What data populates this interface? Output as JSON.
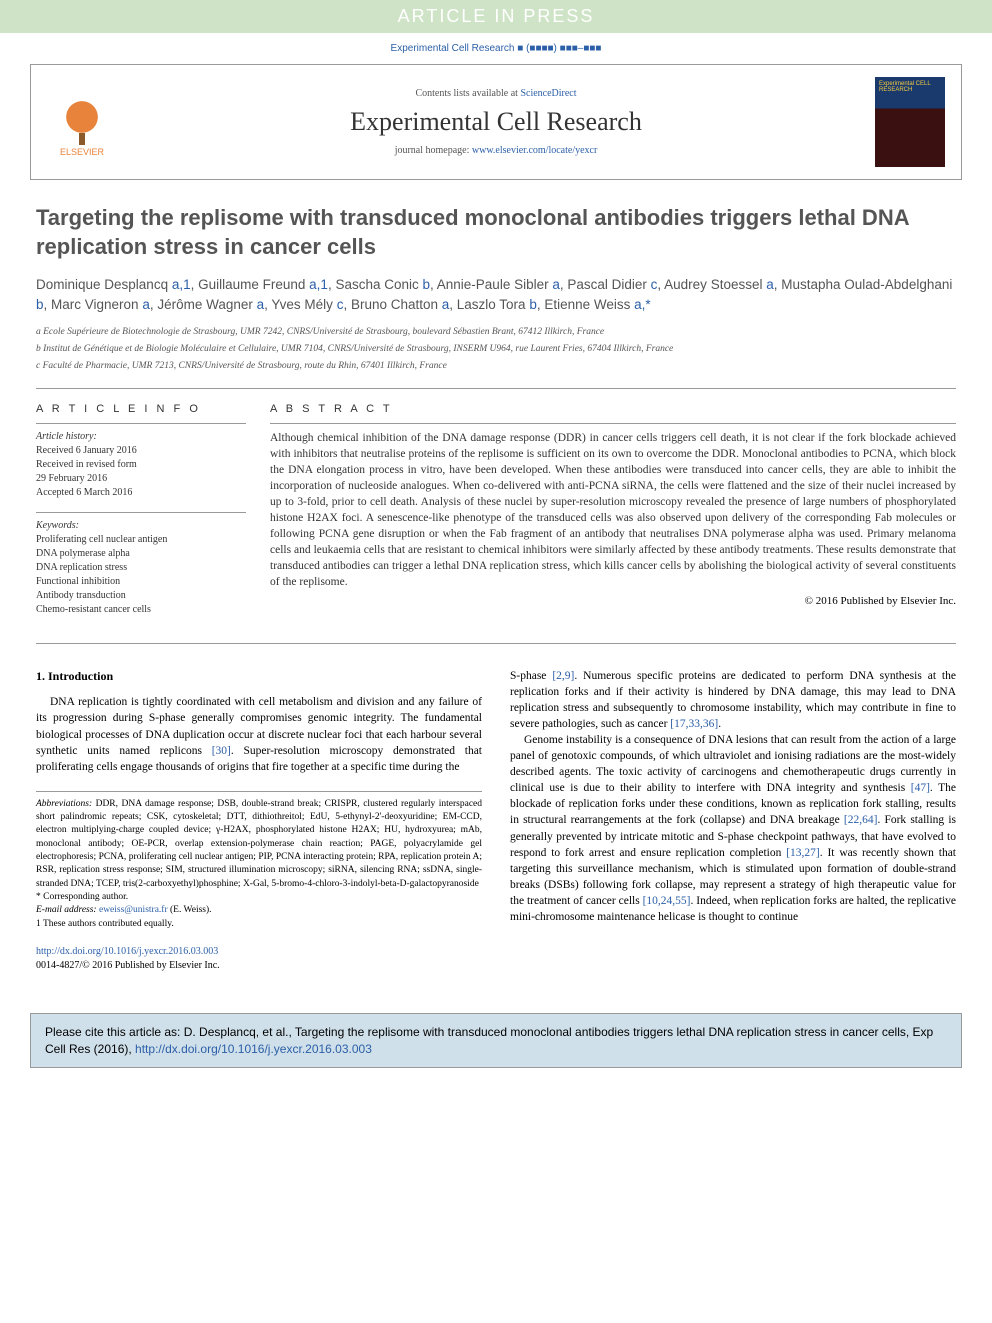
{
  "banner": "ARTICLE IN PRESS",
  "journal_ref": "Experimental Cell Research ■ (■■■■) ■■■–■■■",
  "header": {
    "contents_text": "Contents lists available at ",
    "contents_link": "ScienceDirect",
    "journal_name": "Experimental Cell Research",
    "homepage_prefix": "journal homepage: ",
    "homepage_link": "www.elsevier.com/locate/yexcr",
    "elsevier_label": "ELSEVIER",
    "cover_title": "Experimental CELL RESEARCH"
  },
  "title": "Targeting the replisome with transduced monoclonal antibodies triggers lethal DNA replication stress in cancer cells",
  "authors_html": "Dominique Desplancq <a>a,1</a>, Guillaume Freund <a>a,1</a>, Sascha Conic <a>b</a>, Annie-Paule Sibler <a>a</a>, Pascal Didier <a>c</a>, Audrey Stoessel <a>a</a>, Mustapha Oulad-Abdelghani <a>b</a>, Marc Vigneron <a>a</a>, Jérôme Wagner <a>a</a>, Yves Mély <a>c</a>, Bruno Chatton <a>a</a>, Laszlo Tora <a>b</a>, Etienne Weiss <a>a,*</a>",
  "affiliations": {
    "a": "a Ecole Supérieure de Biotechnologie de Strasbourg, UMR 7242, CNRS/Université de Strasbourg, boulevard Sébastien Brant, 67412 Illkirch, France",
    "b": "b Institut de Génétique et de Biologie Moléculaire et Cellulaire, UMR 7104, CNRS/Université de Strasbourg, INSERM U964, rue Laurent Fries, 67404 Illkirch, France",
    "c": "c Faculté de Pharmacie, UMR 7213, CNRS/Université de Strasbourg, route du Rhin, 67401 Illkirch, France"
  },
  "article_info": {
    "heading": "A R T I C L E  I N F O",
    "history_label": "Article history:",
    "history": "Received 6 January 2016\nReceived in revised form\n29 February 2016\nAccepted 6 March 2016",
    "keywords_label": "Keywords:",
    "keywords": "Proliferating cell nuclear antigen\nDNA polymerase alpha\nDNA replication stress\nFunctional inhibition\nAntibody transduction\nChemo-resistant cancer cells"
  },
  "abstract": {
    "heading": "A B S T R A C T",
    "text": "Although chemical inhibition of the DNA damage response (DDR) in cancer cells triggers cell death, it is not clear if the fork blockade achieved with inhibitors that neutralise proteins of the replisome is sufficient on its own to overcome the DDR. Monoclonal antibodies to PCNA, which block the DNA elongation process in vitro, have been developed. When these antibodies were transduced into cancer cells, they are able to inhibit the incorporation of nucleoside analogues. When co-delivered with anti-PCNA siRNA, the cells were flattened and the size of their nuclei increased by up to 3-fold, prior to cell death. Analysis of these nuclei by super-resolution microscopy revealed the presence of large numbers of phosphorylated histone H2AX foci. A senescence-like phenotype of the transduced cells was also observed upon delivery of the corresponding Fab molecules or following PCNA gene disruption or when the Fab fragment of an antibody that neutralises DNA polymerase alpha was used. Primary melanoma cells and leukaemia cells that are resistant to chemical inhibitors were similarly affected by these antibody treatments. These results demonstrate that transduced antibodies can trigger a lethal DNA replication stress, which kills cancer cells by abolishing the biological activity of several constituents of the replisome.",
    "copyright": "© 2016 Published by Elsevier Inc."
  },
  "body": {
    "intro_heading": "1. Introduction",
    "col1_p1": "DNA replication is tightly coordinated with cell metabolism and division and any failure of its progression during S-phase generally compromises genomic integrity. The fundamental biological processes of DNA duplication occur at discrete nuclear foci that each harbour several synthetic units named replicons [30]. Super-resolution microscopy demonstrated that proliferating cells engage thousands of origins that fire together at a specific time during the",
    "col2_p1": "S-phase [2,9]. Numerous specific proteins are dedicated to perform DNA synthesis at the replication forks and if their activity is hindered by DNA damage, this may lead to DNA replication stress and subsequently to chromosome instability, which may contribute in fine to severe pathologies, such as cancer [17,33,36].",
    "col2_p2": "Genome instability is a consequence of DNA lesions that can result from the action of a large panel of genotoxic compounds, of which ultraviolet and ionising radiations are the most-widely described agents. The toxic activity of carcinogens and chemotherapeutic drugs currently in clinical use is due to their ability to interfere with DNA integrity and synthesis [47]. The blockade of replication forks under these conditions, known as replication fork stalling, results in structural rearrangements at the fork (collapse) and DNA breakage [22,64]. Fork stalling is generally prevented by intricate mitotic and S-phase checkpoint pathways, that have evolved to respond to fork arrest and ensure replication completion [13,27]. It was recently shown that targeting this surveillance mechanism, which is stimulated upon formation of double-strand breaks (DSBs) following fork collapse, may represent a strategy of high therapeutic value for the treatment of cancer cells [10,24,55]. Indeed, when replication forks are halted, the replicative mini-chromosome maintenance helicase is thought to continue"
  },
  "footnotes": {
    "abbrev_label": "Abbreviations:",
    "abbrev": " DDR, DNA damage response; DSB, double-strand break; CRISPR, clustered regularly interspaced short palindromic repeats; CSK, cytoskeletal; DTT, dithiothreitol; EdU, 5-ethynyl-2'-deoxyuridine; EM-CCD, electron multiplying-charge coupled device; γ-H2AX, phosphorylated histone H2AX; HU, hydroxyurea; mAb, monoclonal antibody; OE-PCR, overlap extension-polymerase chain reaction; PAGE, polyacrylamide gel electrophoresis; PCNA, proliferating cell nuclear antigen; PIP, PCNA interacting protein; RPA, replication protein A; RSR, replication stress response; SIM, structured illumination microscopy; siRNA, silencing RNA; ssDNA, single-stranded DNA; TCEP, tris(2-carboxyethyl)phosphine; X-Gal, 5-bromo-4-chloro-3-indolyl-beta-D-galactopyranoside",
    "corresponding": "* Corresponding author.",
    "email_label": "E-mail address: ",
    "email": "eweiss@unistra.fr",
    "email_suffix": " (E. Weiss).",
    "equal": "1 These authors contributed equally."
  },
  "doi": {
    "link": "http://dx.doi.org/10.1016/j.yexcr.2016.03.003",
    "issn": "0014-4827/© 2016 Published by Elsevier Inc."
  },
  "cite_box": {
    "prefix": "Please cite this article as: D. Desplancq, et al., Targeting the replisome with transduced monoclonal antibodies triggers lethal DNA replication stress in cancer cells, Exp Cell Res (2016), ",
    "link": "http://dx.doi.org/10.1016/j.yexcr.2016.03.003"
  }
}
